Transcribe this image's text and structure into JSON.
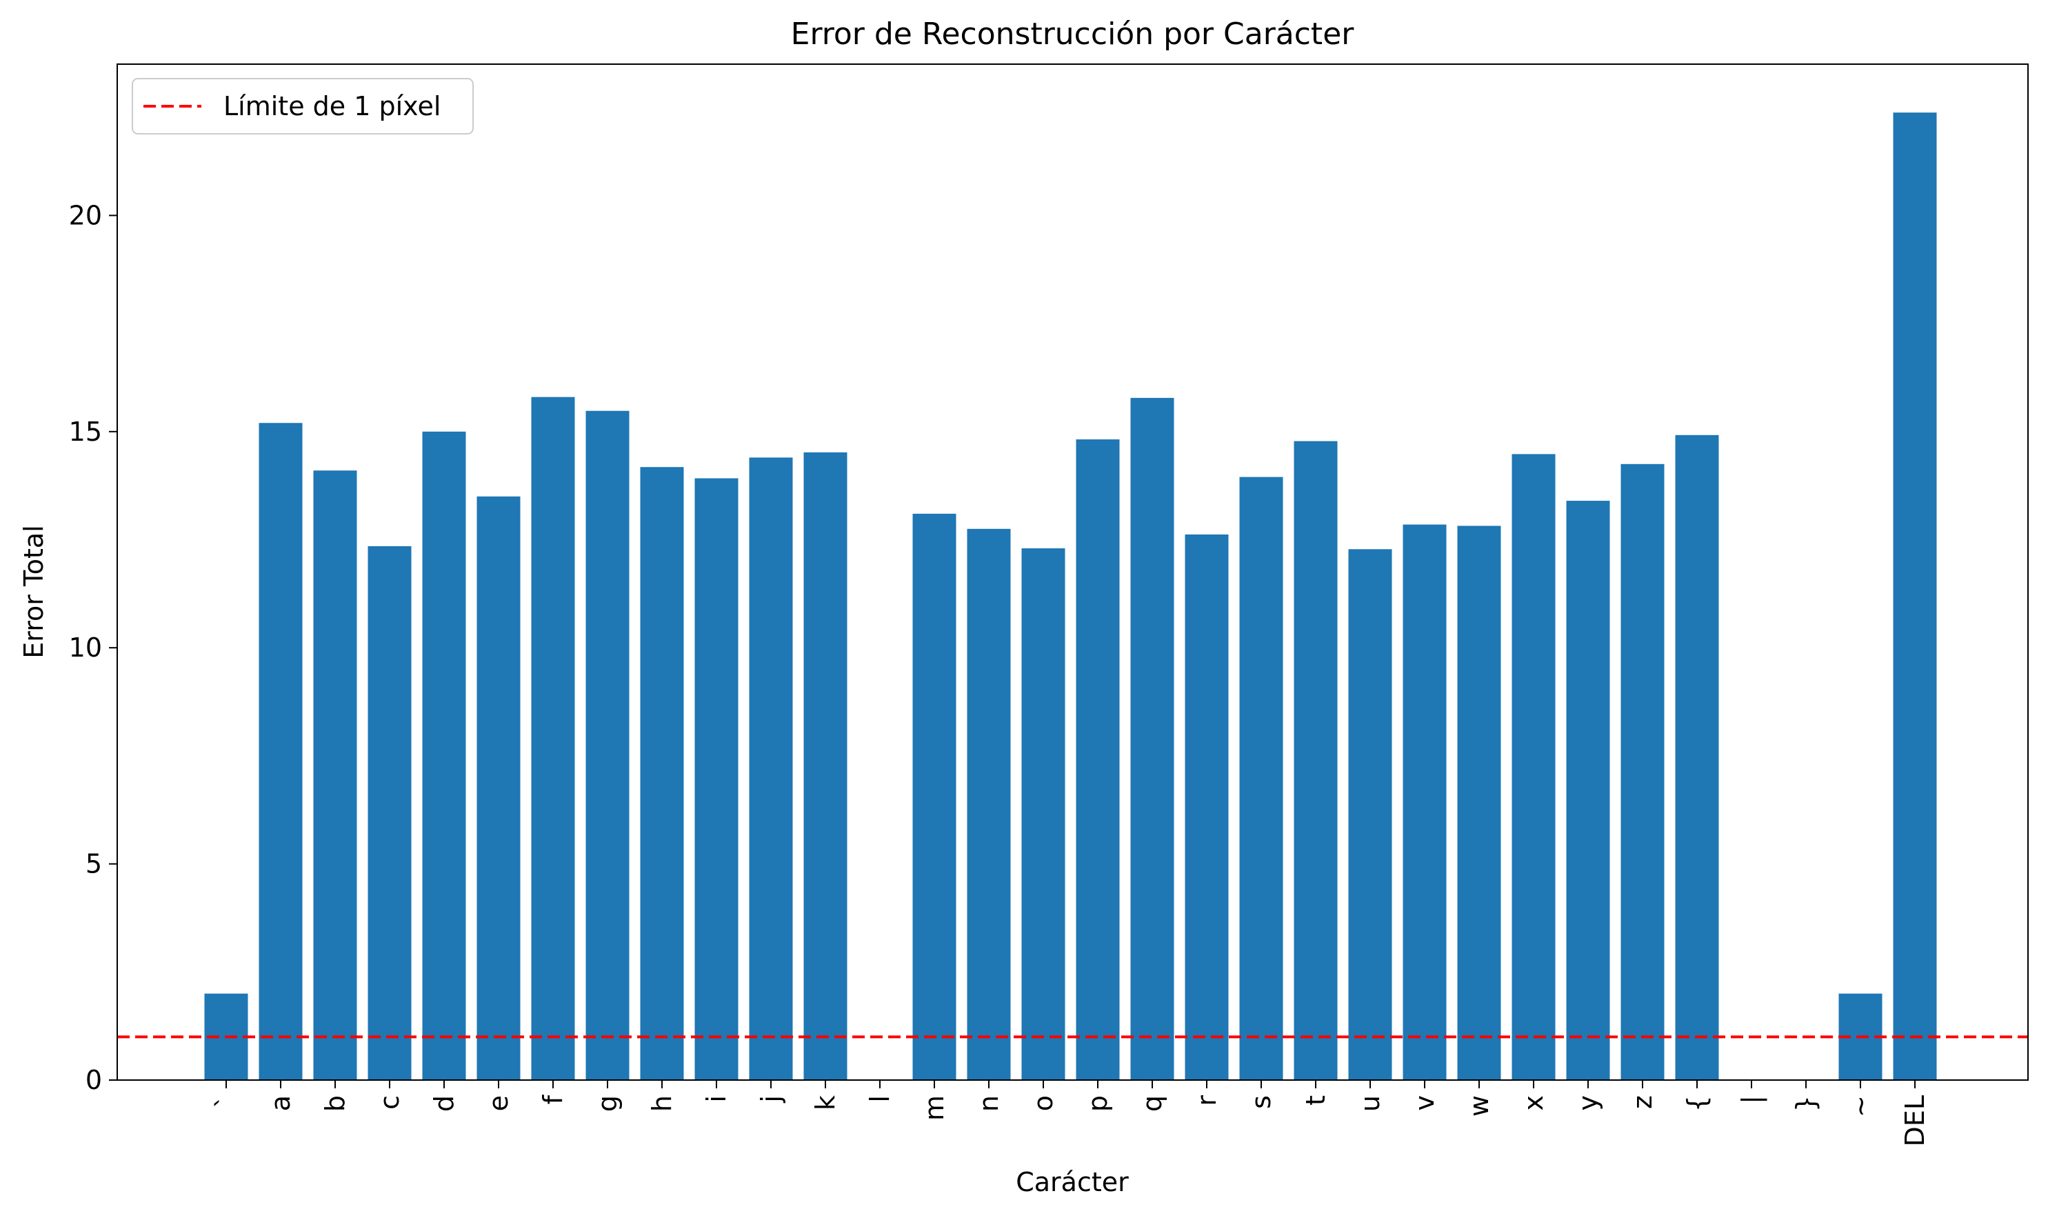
{
  "chart_data": {
    "type": "bar",
    "title": "Error de Reconstrucción por Carácter",
    "xlabel": "Carácter",
    "ylabel": "Error Total",
    "ylim": [
      0,
      23.5
    ],
    "yticks": [
      0,
      5,
      10,
      15,
      20
    ],
    "categories": [
      "`",
      "a",
      "b",
      "c",
      "d",
      "e",
      "f",
      "g",
      "h",
      "i",
      "j",
      "k",
      "l",
      "m",
      "n",
      "o",
      "p",
      "q",
      "r",
      "s",
      "t",
      "u",
      "v",
      "w",
      "x",
      "y",
      "z",
      "{",
      "|",
      "}",
      "~",
      "DEL"
    ],
    "values": [
      2.0,
      15.2,
      14.1,
      12.35,
      15.0,
      13.5,
      15.8,
      15.48,
      14.18,
      13.92,
      14.4,
      14.52,
      0.0,
      13.1,
      12.75,
      12.3,
      14.82,
      15.78,
      12.62,
      13.95,
      14.78,
      12.28,
      12.85,
      12.82,
      14.48,
      13.4,
      14.25,
      14.92,
      0.0,
      0.0,
      2.0,
      22.38
    ],
    "bar_color": "#1f77b4",
    "reference_line": {
      "value": 1,
      "label": "Límite de 1 píxel",
      "color": "#ff0000",
      "style": "dashed"
    },
    "legend": {
      "placement": "top-left"
    },
    "grid": false
  }
}
